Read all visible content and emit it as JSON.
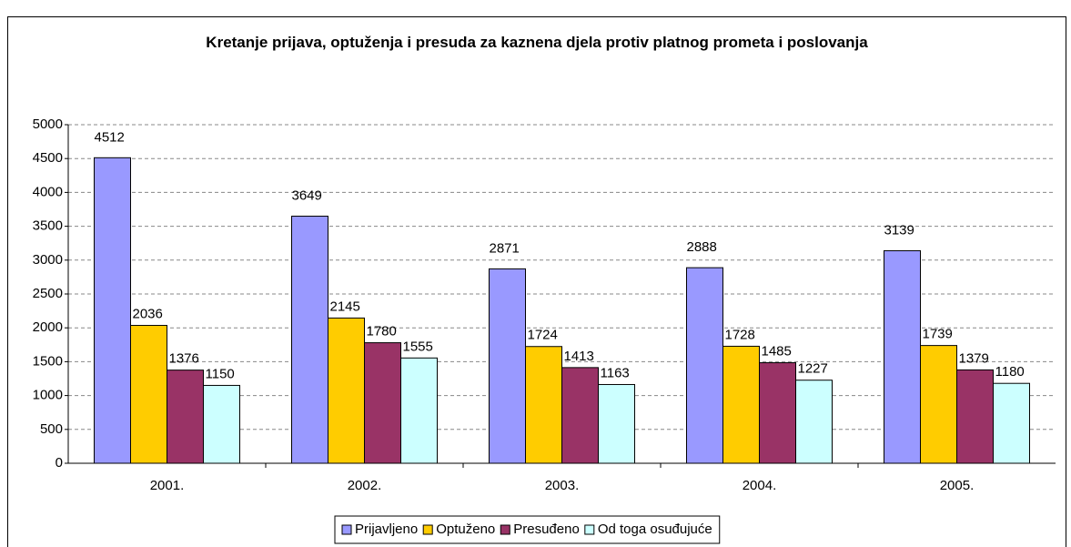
{
  "chart_data": {
    "type": "bar",
    "title": "Kretanje prijava, optuženja i presuda za kaznena djela protiv platnog prometa i poslovanja",
    "categories": [
      "2001.",
      "2002.",
      "2003.",
      "2004.",
      "2005."
    ],
    "series": [
      {
        "name": "Prijavljeno",
        "color": "#9999ff",
        "values": [
          4512,
          3649,
          2871,
          2888,
          3139
        ]
      },
      {
        "name": "Optuženo",
        "color": "#ffcc00",
        "values": [
          2036,
          2145,
          1724,
          1728,
          1739
        ]
      },
      {
        "name": "Presuđeno",
        "color": "#993366",
        "values": [
          1376,
          1780,
          1413,
          1485,
          1379
        ]
      },
      {
        "name": "Od toga osuđujuće",
        "color": "#ccffff",
        "values": [
          1150,
          1555,
          1163,
          1227,
          1180
        ]
      }
    ],
    "ylim": [
      0,
      5000
    ],
    "yticks": [
      0,
      500,
      1000,
      1500,
      2000,
      2500,
      3000,
      3500,
      4000,
      4500,
      5000
    ],
    "grid": true,
    "legend": "bottom"
  }
}
